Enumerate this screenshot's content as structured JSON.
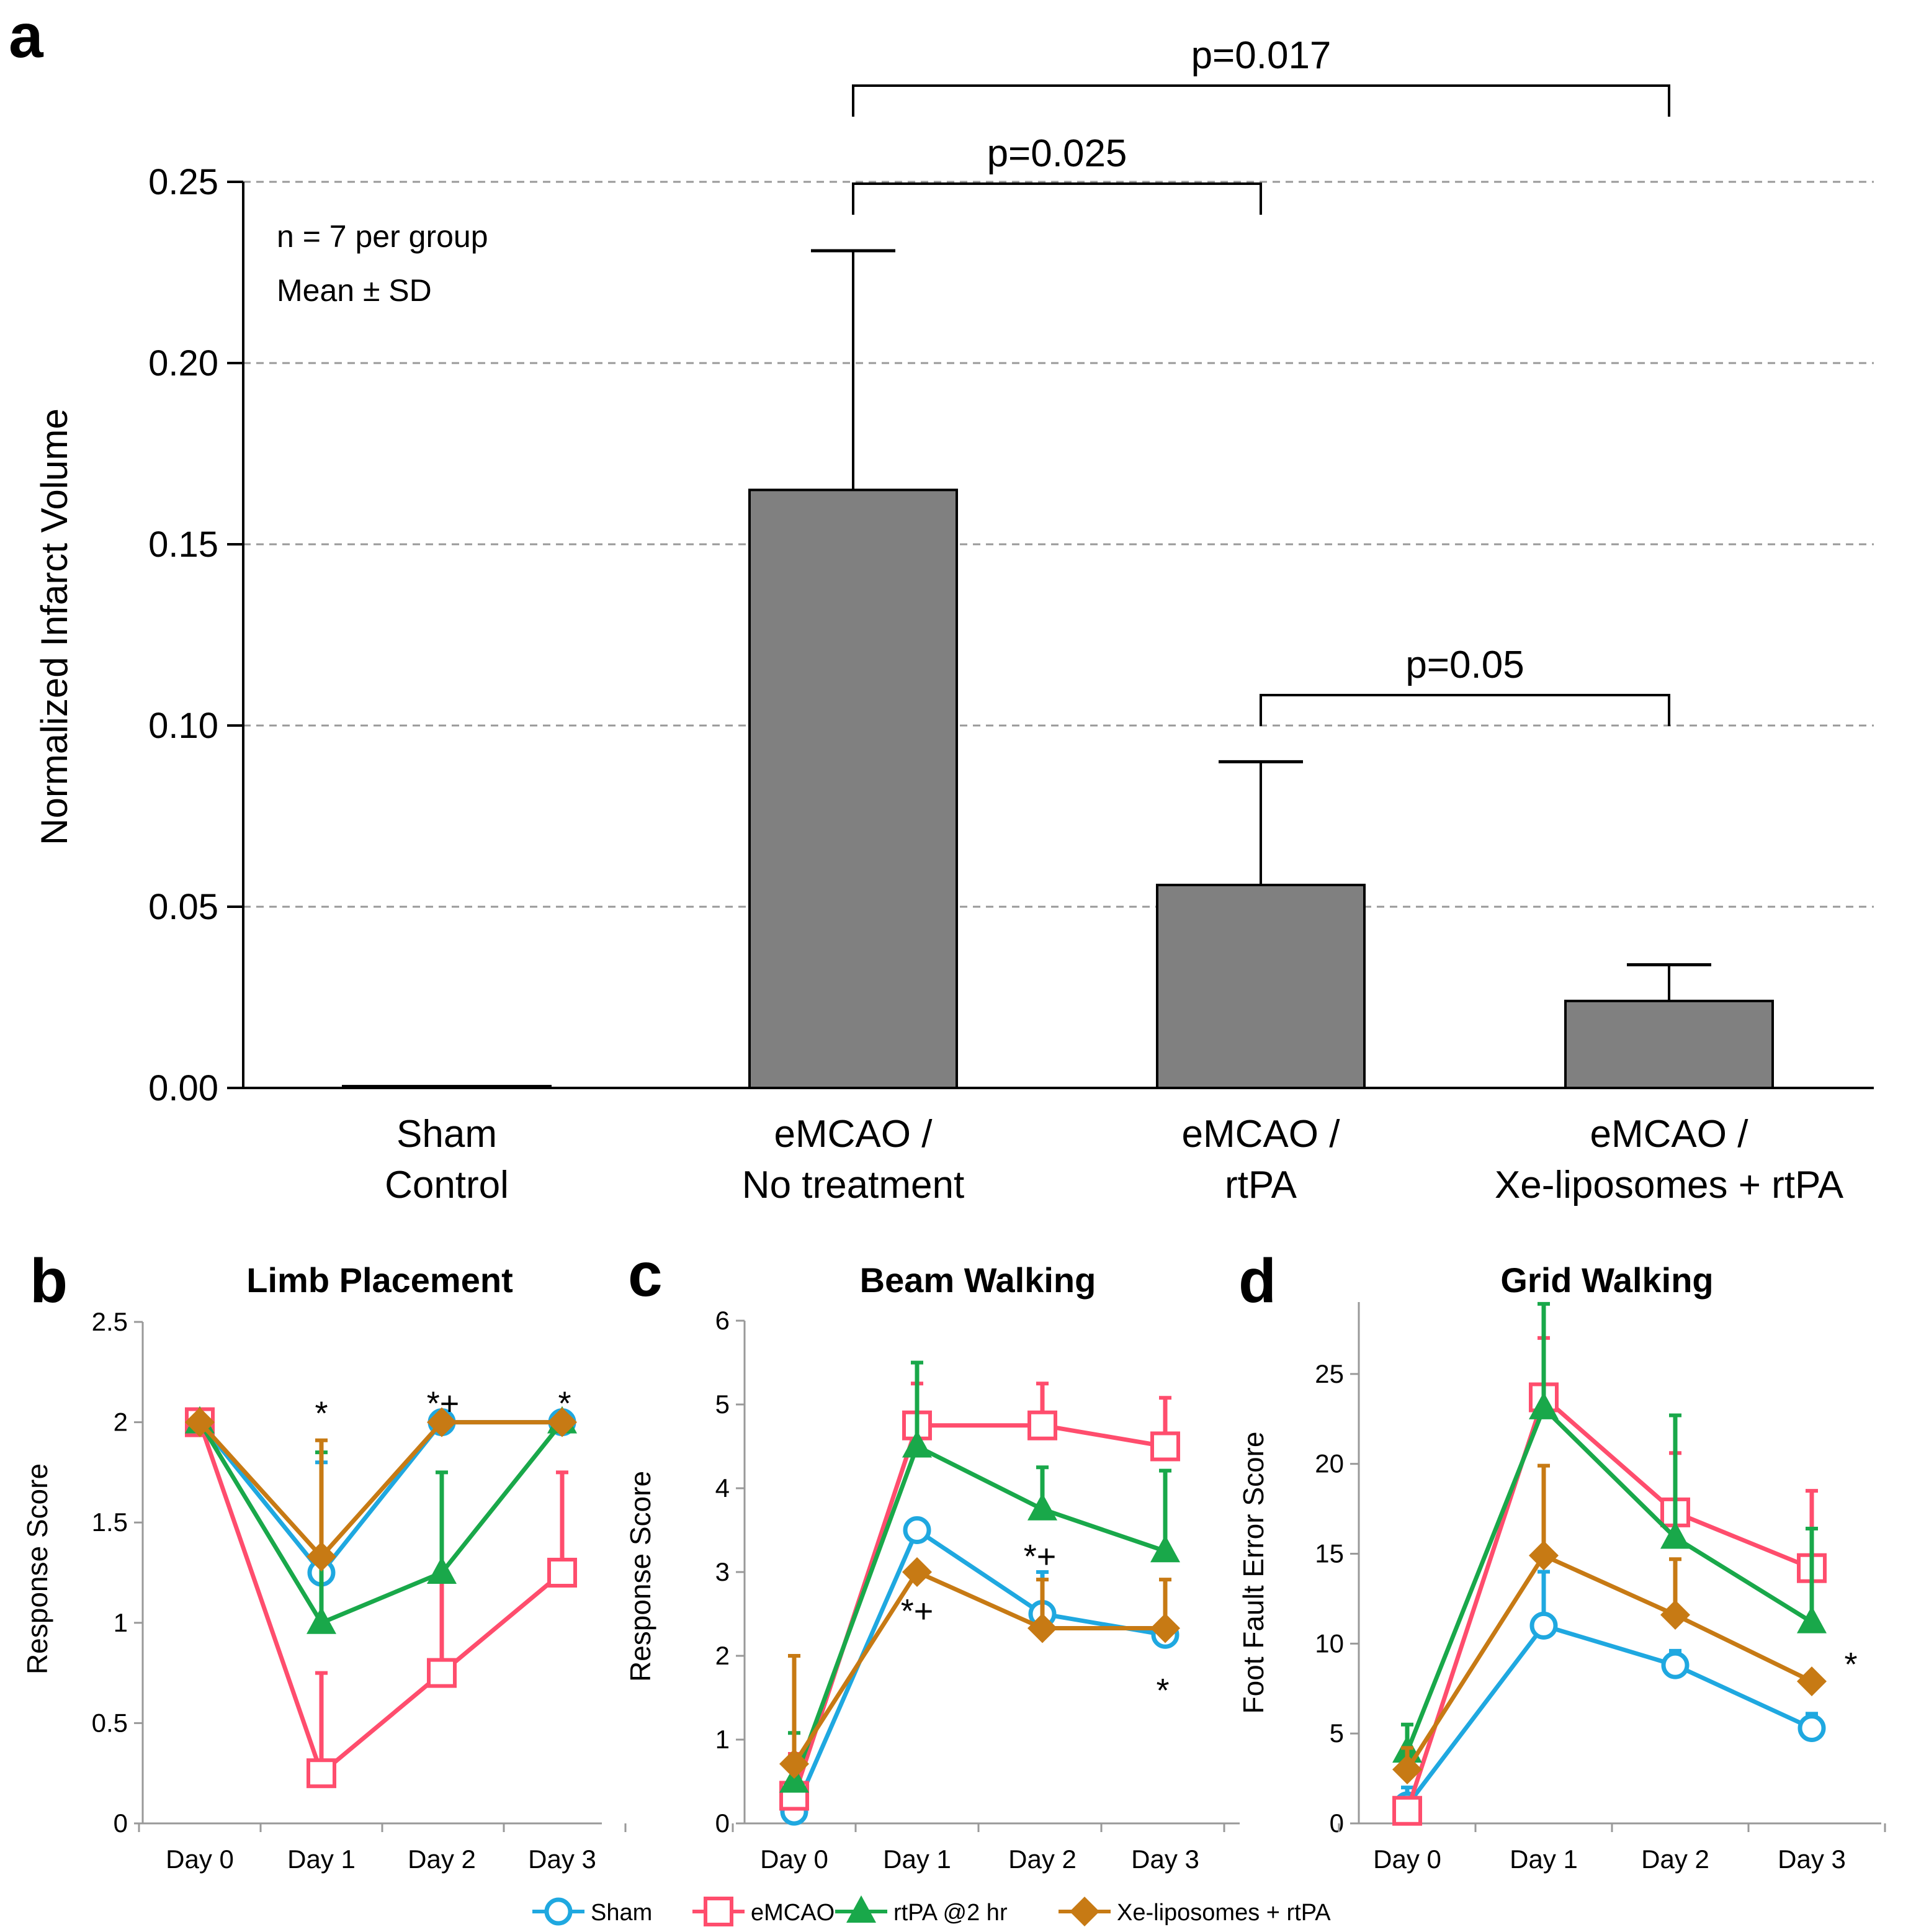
{
  "panel_a": {
    "letter": "a",
    "note_line1": "n = 7 per group",
    "note_line2": "Mean ± SD"
  },
  "panel_b": {
    "letter": "b"
  },
  "panel_c": {
    "letter": "c"
  },
  "panel_d": {
    "letter": "d"
  },
  "legend": [
    {
      "label": "Sham",
      "color": "#1fa8e0",
      "marker": "circle-open"
    },
    {
      "label": "eMCAO",
      "color": "#ff4d6d",
      "marker": "square-open"
    },
    {
      "label": "rtPA @2 hr",
      "color": "#19a84a",
      "marker": "triangle-filled"
    },
    {
      "label": "Xe-liposomes + rtPA",
      "color": "#c77a14",
      "marker": "diamond-filled"
    }
  ],
  "chart_data": [
    {
      "id": "a",
      "type": "bar",
      "title": "",
      "ylabel": "Normalized Infarct Volume",
      "xlabel": "",
      "ylim": [
        0,
        0.25
      ],
      "yticks": [
        "0.00",
        "0.05",
        "0.10",
        "0.15",
        "0.20",
        "0.25"
      ],
      "gridlines": "dashed",
      "categories": [
        [
          "Sham",
          "Control"
        ],
        [
          "eMCAO /",
          "No treatment"
        ],
        [
          "eMCAO /",
          "rtPA"
        ],
        [
          "eMCAO /",
          "Xe-liposomes + rtPA"
        ]
      ],
      "values": [
        0.0005,
        0.165,
        0.056,
        0.024
      ],
      "errors": [
        0,
        0.066,
        0.034,
        0.01
      ],
      "bar_color": "#808080",
      "brackets": [
        {
          "from": 1,
          "to": 3,
          "label": "p=0.017"
        },
        {
          "from": 1,
          "to": 2,
          "label": "p=0.025"
        },
        {
          "from": 2,
          "to": 3,
          "label": "p=0.05"
        }
      ]
    },
    {
      "id": "b",
      "type": "line",
      "title": "Limb Placement",
      "ylabel": "Response Score",
      "xlabel": "",
      "categories": [
        "Day 0",
        "Day 1",
        "Day 2",
        "Day 3"
      ],
      "ylim": [
        0,
        2.5
      ],
      "yticks": [
        "0",
        "0.5",
        "1",
        "1.5",
        "2",
        "2.5"
      ],
      "series": [
        {
          "name": "Sham",
          "values": [
            2,
            1.25,
            2,
            2
          ],
          "errors": [
            0,
            0.55,
            0,
            0
          ]
        },
        {
          "name": "eMCAO",
          "values": [
            2,
            0.25,
            0.75,
            1.25
          ],
          "errors": [
            0,
            0.5,
            0.5,
            0.5
          ]
        },
        {
          "name": "rtPA @2 hr",
          "values": [
            2,
            1,
            1.25,
            2
          ],
          "errors": [
            0,
            0.85,
            0.5,
            0
          ]
        },
        {
          "name": "Xe-liposomes + rtPA",
          "values": [
            2,
            1.33,
            2,
            2
          ],
          "errors": [
            0,
            0.58,
            0,
            0
          ]
        }
      ],
      "annotations": [
        {
          "text": "*",
          "x": 1,
          "y": 2.05
        },
        {
          "text": "*+",
          "x": 2,
          "y": 2.1
        },
        {
          "text": "*",
          "x": 3,
          "y": 2.1
        }
      ]
    },
    {
      "id": "c",
      "type": "line",
      "title": "Beam Walking",
      "ylabel": "Response Score",
      "xlabel": "",
      "categories": [
        "Day 0",
        "Day 1",
        "Day 2",
        "Day 3"
      ],
      "ylim": [
        0,
        6
      ],
      "yticks": [
        "0",
        "1",
        "2",
        "3",
        "4",
        "5",
        "6"
      ],
      "series": [
        {
          "name": "Sham",
          "values": [
            0.14,
            3.5,
            2.5,
            2.25
          ],
          "errors": [
            0,
            0,
            0.5,
            0
          ]
        },
        {
          "name": "eMCAO",
          "values": [
            0.33,
            4.75,
            4.75,
            4.5
          ],
          "errors": [
            0.5,
            0.5,
            0.5,
            0.58
          ]
        },
        {
          "name": "rtPA @2 hr",
          "values": [
            0.5,
            4.5,
            3.75,
            3.25
          ],
          "errors": [
            0.58,
            1.0,
            0.5,
            0.96
          ]
        },
        {
          "name": "Xe-liposomes + rtPA",
          "values": [
            0.71,
            3.0,
            2.33,
            2.33
          ],
          "errors": [
            1.29,
            0,
            0.58,
            0.58
          ]
        }
      ],
      "annotations": [
        {
          "text": "*+",
          "x": 1,
          "y": 2.55
        },
        {
          "text": "*+",
          "x": 2,
          "y": 3.2
        },
        {
          "text": "*",
          "x": 3,
          "y": 1.6
        }
      ]
    },
    {
      "id": "d",
      "type": "line",
      "title": "Grid Walking",
      "ylabel": "Foot Fault Error Score",
      "xlabel": "",
      "categories": [
        "Day 0",
        "Day 1",
        "Day 2",
        "Day 3"
      ],
      "ylim": [
        0,
        29
      ],
      "yticks": [
        "0",
        "5",
        "10",
        "15",
        "20",
        "25"
      ],
      "series": [
        {
          "name": "Sham",
          "values": [
            1.0,
            11.0,
            8.8,
            5.3
          ],
          "errors": [
            1.0,
            3.0,
            0.8,
            0.8
          ]
        },
        {
          "name": "eMCAO",
          "values": [
            0.7,
            23.7,
            17.3,
            14.2
          ],
          "errors": [
            0,
            3.3,
            3.3,
            4.3
          ]
        },
        {
          "name": "rtPA @2 hr",
          "values": [
            4.0,
            23.1,
            15.9,
            11.2
          ],
          "errors": [
            1.5,
            5.8,
            6.8,
            5.2
          ]
        },
        {
          "name": "Xe-liposomes + rtPA",
          "values": [
            3.0,
            14.9,
            11.6,
            7.9
          ],
          "errors": [
            1.2,
            5.0,
            3.1,
            0
          ]
        }
      ],
      "annotations": [
        {
          "text": "*",
          "x": 3.25,
          "y": 8.9
        }
      ]
    }
  ]
}
